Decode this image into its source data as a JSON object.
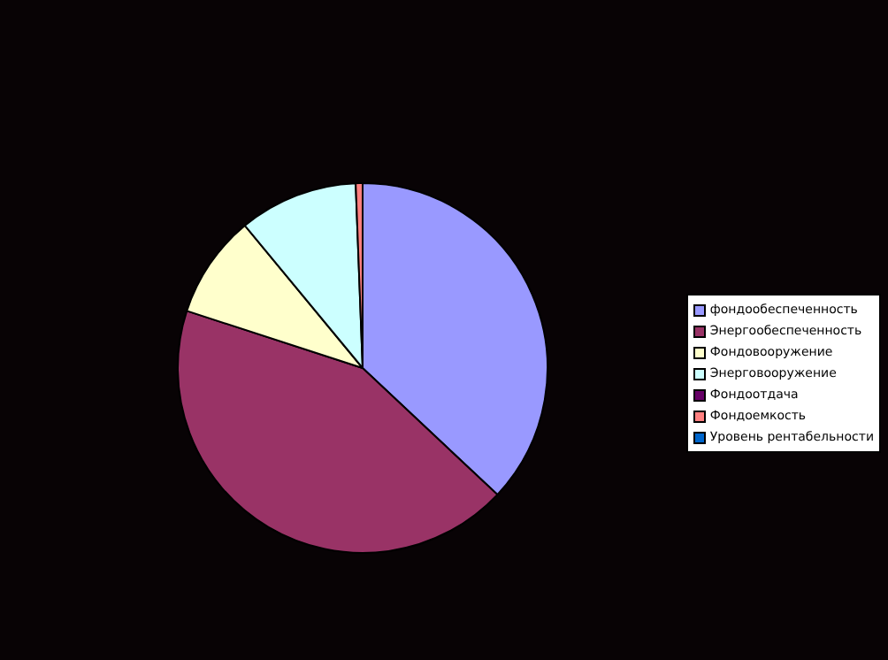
{
  "chart_data": {
    "type": "pie",
    "categories": [
      "фондообеспеченность",
      "Энергообеспеченность",
      "Фондовооружение",
      "Энерговооружение",
      "Фондоотдача",
      "Фондоемкость",
      "Уровень рентабельности"
    ],
    "values": [
      37,
      43,
      9,
      10.4,
      0,
      0.6,
      0
    ],
    "colors": [
      "#9999ff",
      "#993366",
      "#ffffcc",
      "#ccffff",
      "#660066",
      "#ff8080",
      "#0066cc"
    ],
    "legend": "right"
  }
}
